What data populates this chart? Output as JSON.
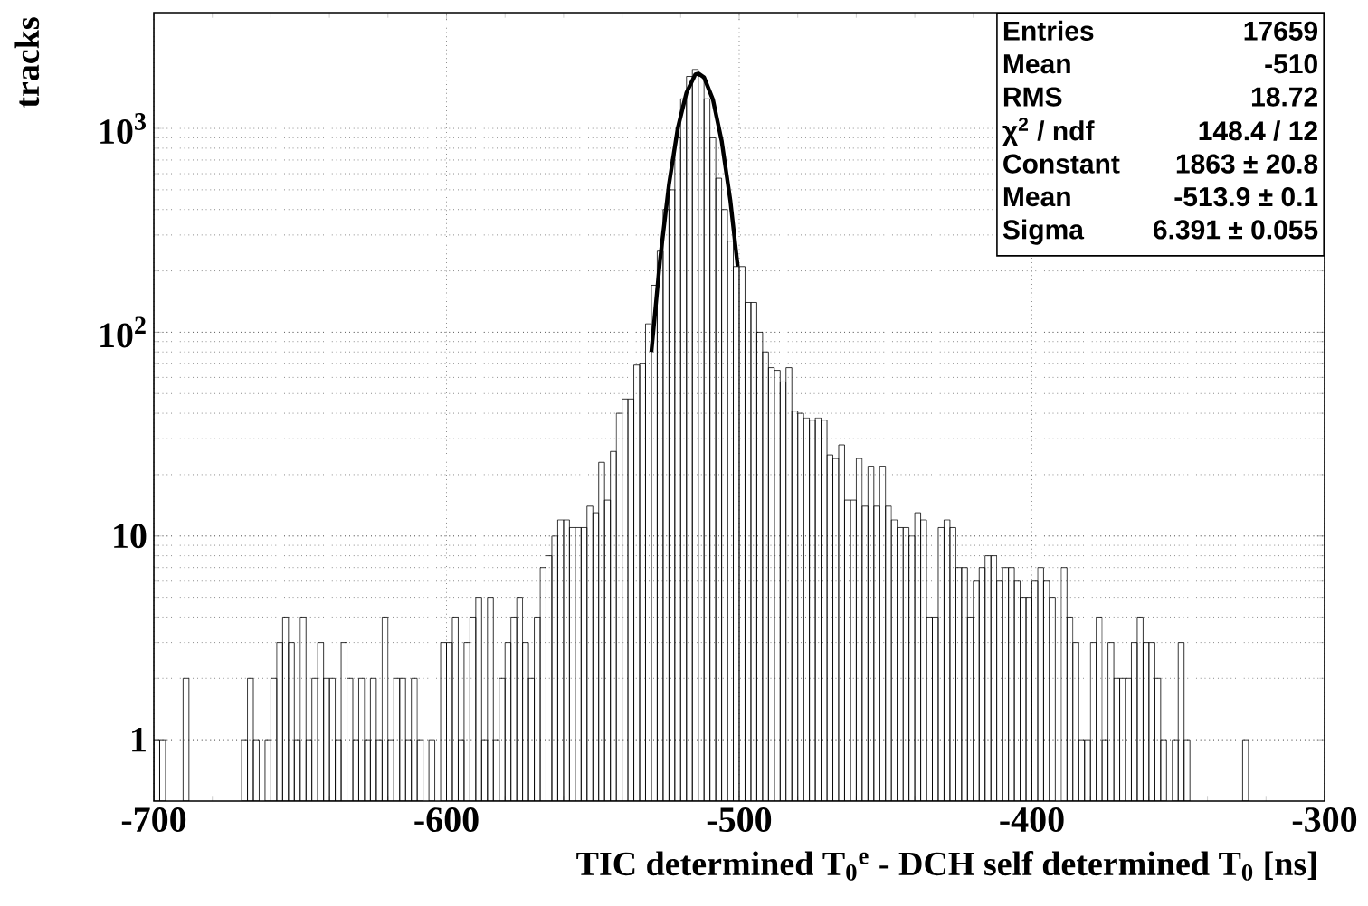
{
  "chart_data": {
    "type": "histogram",
    "xlabel": "TIC determined T$_{0}$$^{e}$ - DCH self determined T$_{0}$ [ns]",
    "ylabel": "tracks",
    "color": "#000000",
    "bins": [
      -700,
      -698,
      -696,
      -694,
      -692,
      -690,
      -688,
      -686,
      -684,
      -682,
      -680,
      -678,
      -676,
      -674,
      -672,
      -670,
      -668,
      -666,
      -664,
      -662,
      -660,
      -658,
      -656,
      -654,
      -652,
      -650,
      -648,
      -646,
      -644,
      -642,
      -640,
      -638,
      -636,
      -634,
      -632,
      -630,
      -628,
      -626,
      -624,
      -622,
      -620,
      -618,
      -616,
      -614,
      -612,
      -610,
      -608,
      -606,
      -604,
      -602,
      -600,
      -598,
      -596,
      -594,
      -592,
      -590,
      -588,
      -586,
      -584,
      -582,
      -580,
      -578,
      -576,
      -574,
      -572,
      -570,
      -568,
      -566,
      -564,
      -562,
      -560,
      -558,
      -556,
      -554,
      -552,
      -550,
      -548,
      -546,
      -544,
      -542,
      -540,
      -538,
      -536,
      -534,
      -532,
      -530,
      -528,
      -526,
      -524,
      -522,
      -520,
      -518,
      -516,
      -514,
      -512,
      -510,
      -508,
      -506,
      -504,
      -502,
      -500,
      -498,
      -496,
      -494,
      -492,
      -490,
      -488,
      -486,
      -484,
      -482,
      -480,
      -478,
      -476,
      -474,
      -472,
      -470,
      -468,
      -466,
      -464,
      -462,
      -460,
      -458,
      -456,
      -454,
      -452,
      -450,
      -448,
      -446,
      -444,
      -442,
      -440,
      -438,
      -436,
      -434,
      -432,
      -430,
      -428,
      -426,
      -424,
      -422,
      -420,
      -418,
      -416,
      -414,
      -412,
      -410,
      -408,
      -406,
      -404,
      -402,
      -400,
      -398,
      -396,
      -394,
      -392,
      -390,
      -388,
      -386,
      -384,
      -382,
      -380,
      -378,
      -376,
      -374,
      -372,
      -370,
      -368,
      -366,
      -364,
      -362,
      -360,
      -358,
      -356,
      -354,
      -352,
      -350,
      -348,
      -346,
      -344,
      -342,
      -340,
      -338,
      -336,
      -334,
      -332,
      -330,
      -328,
      -326,
      -324,
      -322,
      -320,
      -318,
      -316,
      -314,
      -312,
      -310,
      -308,
      -306,
      -304,
      -302,
      -300
    ],
    "values": [
      1,
      1,
      null,
      null,
      null,
      2,
      null,
      null,
      null,
      null,
      null,
      null,
      null,
      null,
      null,
      1,
      2,
      1,
      null,
      1,
      2,
      3,
      4,
      3,
      1,
      4,
      1,
      2,
      3,
      2,
      2,
      1,
      3,
      2,
      1,
      2,
      1,
      2,
      1,
      4,
      1,
      2,
      2,
      1,
      2,
      1,
      null,
      1,
      null,
      3,
      3,
      4,
      1,
      3,
      4,
      5,
      1,
      5,
      1,
      2,
      3,
      4,
      5,
      3,
      2,
      4,
      7,
      8,
      10,
      12,
      12,
      11,
      11,
      11,
      14,
      13,
      23,
      15,
      26,
      40,
      47,
      47,
      69,
      70,
      110,
      170,
      250,
      400,
      500,
      900,
      1400,
      1800,
      1950,
      1800,
      1400,
      900,
      570,
      400,
      280,
      210,
      210,
      140,
      140,
      100,
      80,
      67,
      65,
      57,
      67,
      41,
      40,
      38,
      37,
      38,
      37,
      25,
      24,
      28,
      15,
      15,
      24,
      14,
      22,
      14,
      22,
      14,
      12,
      11,
      11,
      10,
      13,
      12,
      4,
      4,
      11,
      12,
      11,
      7,
      7,
      4,
      6,
      7,
      8,
      8,
      6,
      7,
      7,
      6,
      5,
      5,
      6,
      7,
      6,
      5,
      null,
      7,
      4,
      3,
      1,
      1,
      3,
      4,
      1,
      3,
      2,
      2,
      2,
      3,
      4,
      3,
      3,
      2,
      1,
      null,
      1,
      3,
      1,
      null,
      null,
      null,
      null,
      null,
      null,
      null,
      null,
      null,
      1,
      null,
      null,
      null,
      null,
      null,
      null,
      null,
      null,
      null,
      null,
      null,
      null,
      null
    ],
    "series": [
      {
        "type": "line",
        "color": "#000000",
        "x": [
          -530,
          -527,
          -524,
          -521,
          -518,
          -515,
          -513.9,
          -512,
          -509,
          -506,
          -503,
          -500.5
        ],
        "values": [
          80,
          230,
          530,
          1000,
          1500,
          1840,
          1860,
          1780,
          1390,
          870,
          440,
          210
        ]
      }
    ],
    "xlim": [
      -700,
      -300
    ],
    "ylim": [
      0.5,
      3700
    ],
    "xticks": [
      -700,
      -600,
      -500,
      -400,
      -300
    ],
    "yticks": [
      1,
      10,
      {
        "value": 100,
        "label": "10$^{2}$"
      },
      {
        "value": 1000,
        "label": "10$^{3}$"
      }
    ],
    "log": "y",
    "grid": true,
    "annotations": [
      "Entries",
      "17659",
      "Mean",
      "-510",
      "RMS",
      "18.72",
      "χ$^{2}$ / ndf",
      "148.4 / 12",
      "Constant",
      "1863 ± 20.8",
      "Mean",
      "-513.9 ± 0.1",
      "Sigma",
      "6.391 ± 0.055"
    ]
  }
}
